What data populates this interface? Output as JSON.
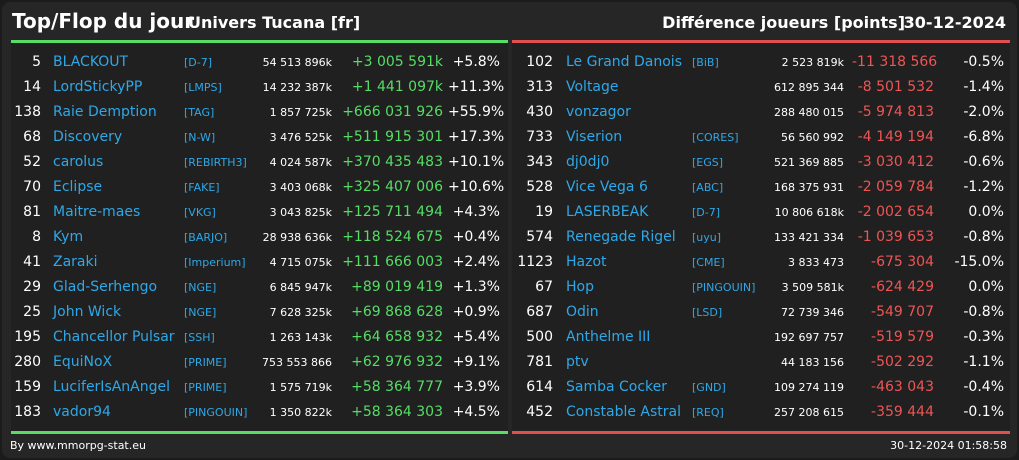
{
  "header": {
    "title": "Top/Flop du jour",
    "universe": "Univers Tucana [fr]",
    "metric": "Différence joueurs [points]",
    "date": "30-12-2024"
  },
  "colors": {
    "gain": "#55dd66",
    "loss": "#ee5555",
    "name": "#2ea8e8"
  },
  "top": [
    {
      "rank": "5",
      "name": "BLACKOUT",
      "tag": "[D-7]",
      "total": "54 513 896k",
      "diff": "+3 005 591k",
      "pct": "+5.8%"
    },
    {
      "rank": "14",
      "name": "LordStickyPP",
      "tag": "[LMPS]",
      "total": "14 232 387k",
      "diff": "+1 441 097k",
      "pct": "+11.3%"
    },
    {
      "rank": "138",
      "name": "Raie Demption",
      "tag": "[TAG]",
      "total": "1 857 725k",
      "diff": "+666 031 926",
      "pct": "+55.9%"
    },
    {
      "rank": "68",
      "name": "Discovery",
      "tag": "[N-W]",
      "total": "3 476 525k",
      "diff": "+511 915 301",
      "pct": "+17.3%"
    },
    {
      "rank": "52",
      "name": "carolus",
      "tag": "[REBIRTH3]",
      "total": "4 024 587k",
      "diff": "+370 435 483",
      "pct": "+10.1%"
    },
    {
      "rank": "70",
      "name": "Eclipse",
      "tag": "[FAKE]",
      "total": "3 403 068k",
      "diff": "+325 407 006",
      "pct": "+10.6%"
    },
    {
      "rank": "81",
      "name": "Maitre-maes",
      "tag": "[VKG]",
      "total": "3 043 825k",
      "diff": "+125 711 494",
      "pct": "+4.3%"
    },
    {
      "rank": "8",
      "name": "Kym",
      "tag": "[BARJO]",
      "total": "28 938 636k",
      "diff": "+118 524 675",
      "pct": "+0.4%"
    },
    {
      "rank": "41",
      "name": "Zaraki",
      "tag": "[Imperium]",
      "total": "4 715 075k",
      "diff": "+111 666 003",
      "pct": "+2.4%"
    },
    {
      "rank": "29",
      "name": "Glad-Serhengo",
      "tag": "[NGE]",
      "total": "6 845 947k",
      "diff": "+89 019 419",
      "pct": "+1.3%"
    },
    {
      "rank": "25",
      "name": "John Wick",
      "tag": "[NGE]",
      "total": "7 628 325k",
      "diff": "+69 868 628",
      "pct": "+0.9%"
    },
    {
      "rank": "195",
      "name": "Chancellor Pulsar",
      "tag": "[SSH]",
      "total": "1 263 143k",
      "diff": "+64 658 932",
      "pct": "+5.4%"
    },
    {
      "rank": "280",
      "name": "EquiNoX",
      "tag": "[PRIME]",
      "total": "753 553 866",
      "diff": "+62 976 932",
      "pct": "+9.1%"
    },
    {
      "rank": "159",
      "name": "LuciferIsAnAngel",
      "tag": "[PRIME]",
      "total": "1 575 719k",
      "diff": "+58 364 777",
      "pct": "+3.9%"
    },
    {
      "rank": "183",
      "name": "vador94",
      "tag": "[PINGOUIN]",
      "total": "1 350 822k",
      "diff": "+58 364 303",
      "pct": "+4.5%"
    }
  ],
  "flop": [
    {
      "rank": "102",
      "name": "Le Grand Danois",
      "tag": "[BiB]",
      "total": "2 523 819k",
      "diff": "-11 318 566",
      "pct": "-0.5%"
    },
    {
      "rank": "313",
      "name": "Voltage",
      "tag": "",
      "total": "612 895 344",
      "diff": "-8 501 532",
      "pct": "-1.4%"
    },
    {
      "rank": "430",
      "name": "vonzagor",
      "tag": "",
      "total": "288 480 015",
      "diff": "-5 974 813",
      "pct": "-2.0%"
    },
    {
      "rank": "733",
      "name": "Viserion",
      "tag": "[CORES]",
      "total": "56 560 992",
      "diff": "-4 149 194",
      "pct": "-6.8%"
    },
    {
      "rank": "343",
      "name": "dj0dj0",
      "tag": "[EGS]",
      "total": "521 369 885",
      "diff": "-3 030 412",
      "pct": "-0.6%"
    },
    {
      "rank": "528",
      "name": "Vice Vega 6",
      "tag": "[ABC]",
      "total": "168 375 931",
      "diff": "-2 059 784",
      "pct": "-1.2%"
    },
    {
      "rank": "19",
      "name": "LASERBEAK",
      "tag": "[D-7]",
      "total": "10 806 618k",
      "diff": "-2 002 654",
      "pct": "0.0%"
    },
    {
      "rank": "574",
      "name": "Renegade Rigel",
      "tag": "[uyu]",
      "total": "133 421 334",
      "diff": "-1 039 653",
      "pct": "-0.8%"
    },
    {
      "rank": "1123",
      "name": "Hazot",
      "tag": "[CME]",
      "total": "3 833 473",
      "diff": "-675 304",
      "pct": "-15.0%"
    },
    {
      "rank": "67",
      "name": "Hop",
      "tag": "[PINGOUIN]",
      "total": "3 509 581k",
      "diff": "-624 429",
      "pct": "0.0%"
    },
    {
      "rank": "687",
      "name": "Odin",
      "tag": "[LSD]",
      "total": "72 739 346",
      "diff": "-549 707",
      "pct": "-0.8%"
    },
    {
      "rank": "500",
      "name": "Anthelme III",
      "tag": "",
      "total": "192 697 757",
      "diff": "-519 579",
      "pct": "-0.3%"
    },
    {
      "rank": "781",
      "name": "ptv",
      "tag": "",
      "total": "44 183 156",
      "diff": "-502 292",
      "pct": "-1.1%"
    },
    {
      "rank": "614",
      "name": "Samba Cocker",
      "tag": "[GND]",
      "total": "109 274 119",
      "diff": "-463 043",
      "pct": "-0.4%"
    },
    {
      "rank": "452",
      "name": "Constable Astral",
      "tag": "[REQ]",
      "total": "257 208 615",
      "diff": "-359 444",
      "pct": "-0.1%"
    }
  ],
  "footer": {
    "source": "By www.mmorpg-stat.eu",
    "timestamp": "30-12-2024 01:58:58"
  }
}
